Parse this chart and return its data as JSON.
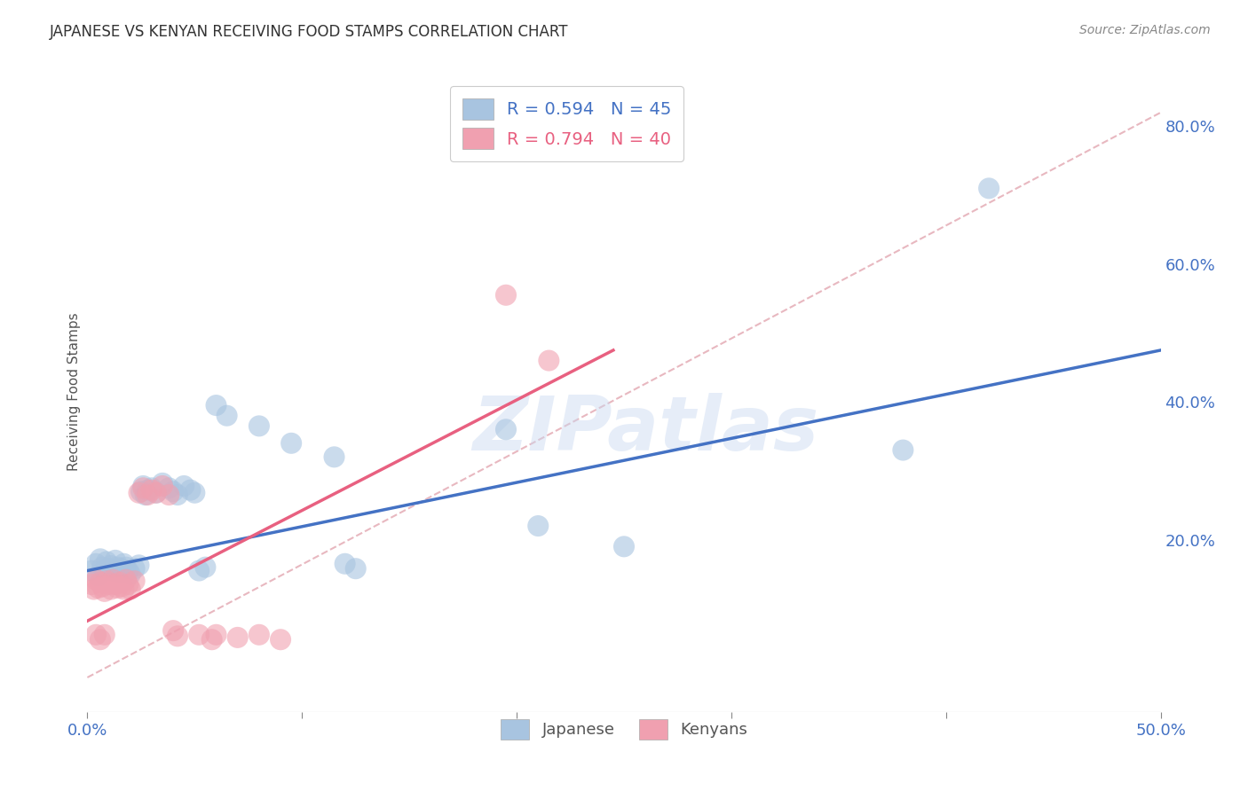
{
  "title": "JAPANESE VS KENYAN RECEIVING FOOD STAMPS CORRELATION CHART",
  "source": "Source: ZipAtlas.com",
  "ylabel": "Receiving Food Stamps",
  "xlim": [
    0.0,
    0.5
  ],
  "ylim": [
    -0.05,
    0.88
  ],
  "xticks": [
    0.0,
    0.1,
    0.2,
    0.3,
    0.4,
    0.5
  ],
  "xticklabels": [
    "0.0%",
    "",
    "",
    "",
    "",
    "50.0%"
  ],
  "yticks_right": [
    0.0,
    0.2,
    0.4,
    0.6,
    0.8
  ],
  "yticklabels_right": [
    "",
    "20.0%",
    "40.0%",
    "60.0%",
    "80.0%"
  ],
  "japanese_scatter": [
    [
      0.002,
      0.155
    ],
    [
      0.004,
      0.165
    ],
    [
      0.005,
      0.148
    ],
    [
      0.006,
      0.172
    ],
    [
      0.007,
      0.16
    ],
    [
      0.008,
      0.155
    ],
    [
      0.009,
      0.168
    ],
    [
      0.01,
      0.158
    ],
    [
      0.011,
      0.162
    ],
    [
      0.012,
      0.155
    ],
    [
      0.013,
      0.17
    ],
    [
      0.014,
      0.16
    ],
    [
      0.015,
      0.153
    ],
    [
      0.016,
      0.158
    ],
    [
      0.017,
      0.165
    ],
    [
      0.018,
      0.16
    ],
    [
      0.019,
      0.155
    ],
    [
      0.02,
      0.15
    ],
    [
      0.022,
      0.158
    ],
    [
      0.024,
      0.163
    ],
    [
      0.025,
      0.27
    ],
    [
      0.026,
      0.278
    ],
    [
      0.027,
      0.265
    ],
    [
      0.028,
      0.272
    ],
    [
      0.03,
      0.275
    ],
    [
      0.032,
      0.268
    ],
    [
      0.035,
      0.282
    ],
    [
      0.038,
      0.275
    ],
    [
      0.04,
      0.27
    ],
    [
      0.042,
      0.265
    ],
    [
      0.045,
      0.278
    ],
    [
      0.048,
      0.272
    ],
    [
      0.05,
      0.268
    ],
    [
      0.052,
      0.155
    ],
    [
      0.055,
      0.16
    ],
    [
      0.06,
      0.395
    ],
    [
      0.065,
      0.38
    ],
    [
      0.08,
      0.365
    ],
    [
      0.095,
      0.34
    ],
    [
      0.115,
      0.32
    ],
    [
      0.12,
      0.165
    ],
    [
      0.125,
      0.158
    ],
    [
      0.195,
      0.36
    ],
    [
      0.21,
      0.22
    ],
    [
      0.25,
      0.19
    ],
    [
      0.38,
      0.33
    ],
    [
      0.42,
      0.71
    ]
  ],
  "kenyan_scatter": [
    [
      0.002,
      0.135
    ],
    [
      0.003,
      0.128
    ],
    [
      0.004,
      0.142
    ],
    [
      0.005,
      0.13
    ],
    [
      0.006,
      0.138
    ],
    [
      0.007,
      0.132
    ],
    [
      0.008,
      0.125
    ],
    [
      0.009,
      0.14
    ],
    [
      0.01,
      0.135
    ],
    [
      0.011,
      0.128
    ],
    [
      0.012,
      0.142
    ],
    [
      0.013,
      0.135
    ],
    [
      0.014,
      0.13
    ],
    [
      0.015,
      0.138
    ],
    [
      0.016,
      0.132
    ],
    [
      0.017,
      0.128
    ],
    [
      0.018,
      0.142
    ],
    [
      0.019,
      0.135
    ],
    [
      0.02,
      0.128
    ],
    [
      0.022,
      0.14
    ],
    [
      0.024,
      0.268
    ],
    [
      0.026,
      0.275
    ],
    [
      0.028,
      0.265
    ],
    [
      0.03,
      0.272
    ],
    [
      0.032,
      0.268
    ],
    [
      0.035,
      0.278
    ],
    [
      0.038,
      0.265
    ],
    [
      0.04,
      0.068
    ],
    [
      0.042,
      0.06
    ],
    [
      0.052,
      0.062
    ],
    [
      0.058,
      0.055
    ],
    [
      0.06,
      0.062
    ],
    [
      0.07,
      0.058
    ],
    [
      0.08,
      0.062
    ],
    [
      0.09,
      0.055
    ],
    [
      0.195,
      0.555
    ],
    [
      0.215,
      0.46
    ],
    [
      0.004,
      0.062
    ],
    [
      0.006,
      0.055
    ],
    [
      0.008,
      0.062
    ]
  ],
  "blue_line": {
    "x0": 0.0,
    "y0": 0.155,
    "x1": 0.5,
    "y1": 0.475
  },
  "pink_line": {
    "x0": 0.0,
    "y0": 0.082,
    "x1": 0.245,
    "y1": 0.475
  },
  "diagonal_line": {
    "x0": 0.0,
    "y0": 0.0,
    "x1": 0.5,
    "y1": 0.82
  },
  "blue_color": "#4472c4",
  "pink_color": "#e86080",
  "blue_scatter_color": "#a8c4e0",
  "pink_scatter_color": "#f0a0b0",
  "diagonal_color": "#e8b8c0",
  "watermark": "ZIPatlas",
  "background_color": "#ffffff",
  "grid_color": "#cccccc"
}
